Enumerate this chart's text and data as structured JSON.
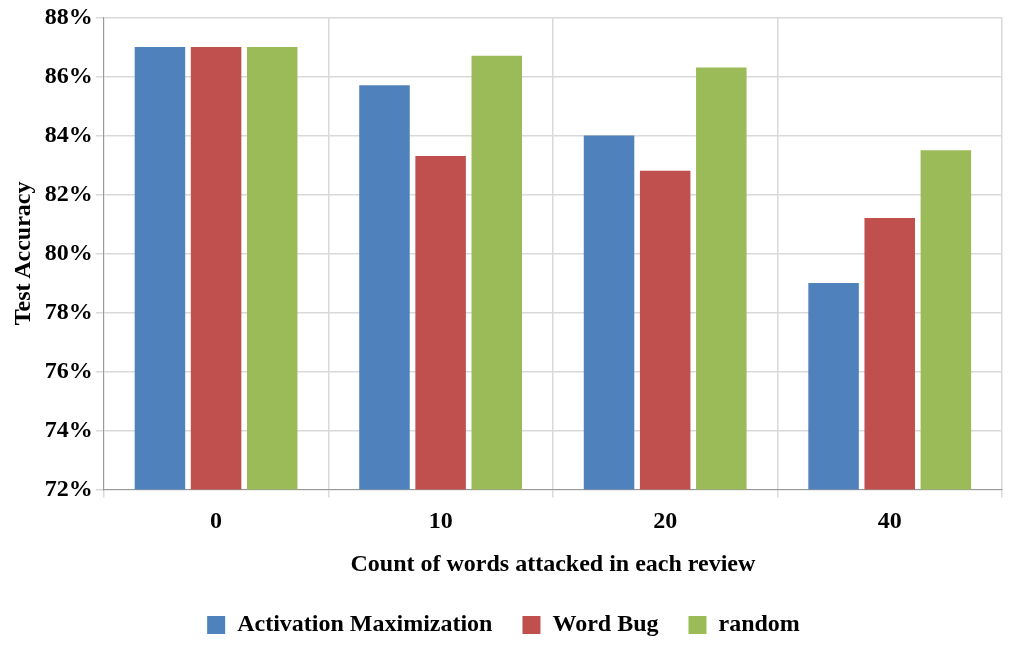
{
  "chart_data": {
    "type": "bar",
    "categories": [
      "0",
      "10",
      "20",
      "40"
    ],
    "series": [
      {
        "name": "Activation Maximization",
        "color": "#4f81bd",
        "values": [
          87.0,
          85.7,
          84.0,
          79.0
        ]
      },
      {
        "name": "Word Bug",
        "color": "#c0504d",
        "values": [
          87.0,
          83.3,
          82.8,
          81.2
        ]
      },
      {
        "name": "random",
        "color": "#9bbb59",
        "values": [
          87.0,
          86.7,
          86.3,
          83.5
        ]
      }
    ],
    "xlabel": "Count of words attacked in each review",
    "ylabel": "Test Accuracy",
    "ylim": [
      72,
      88
    ],
    "yticks": [
      {
        "value": 72,
        "label": "72%"
      },
      {
        "value": 74,
        "label": "74%"
      },
      {
        "value": 76,
        "label": "76%"
      },
      {
        "value": 78,
        "label": "78%"
      },
      {
        "value": 80,
        "label": "80%"
      },
      {
        "value": 82,
        "label": "82%"
      },
      {
        "value": 84,
        "label": "84%"
      },
      {
        "value": 86,
        "label": "86%"
      },
      {
        "value": 88,
        "label": "88%"
      }
    ],
    "grid": true,
    "legend": "bottom"
  }
}
